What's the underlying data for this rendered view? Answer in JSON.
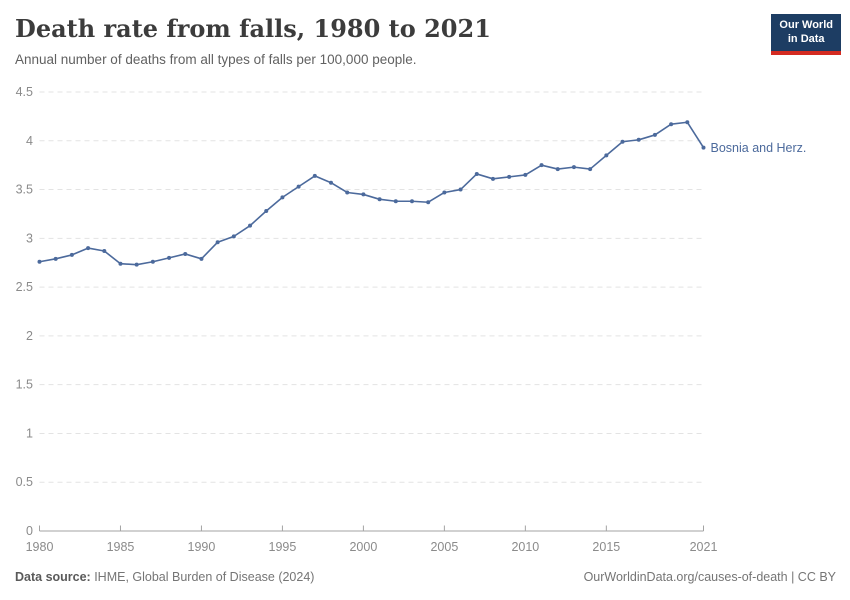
{
  "header": {
    "title": "Death rate from falls, 1980 to 2021",
    "subtitle": "Annual number of deaths from all types of falls per 100,000 people."
  },
  "logo": {
    "line1": "Our World",
    "line2": "in Data",
    "bg_color": "#1d3d63",
    "accent_color": "#d42b21"
  },
  "footer": {
    "source_label": "Data source:",
    "source_text": " IHME, Global Burden of Disease (2024)",
    "credit": "OurWorldinData.org/causes-of-death | CC BY"
  },
  "chart_data": {
    "type": "line",
    "title": "Death rate from falls, 1980 to 2021",
    "subtitle": "Annual number of deaths from all types of falls per 100,000 people.",
    "xlabel": "",
    "ylabel": "",
    "xlim": [
      1980,
      2021
    ],
    "ylim": [
      0,
      4.5
    ],
    "xticks": [
      1980,
      1985,
      1990,
      1995,
      2000,
      2005,
      2010,
      2015,
      2021
    ],
    "yticks": [
      0,
      0.5,
      1,
      1.5,
      2,
      2.5,
      3,
      3.5,
      4,
      4.5
    ],
    "grid": "horizontal-dashed",
    "legend_position": "end-of-line-label",
    "colors": {
      "grid": "#e3e3e3",
      "axis": "#a3a3a3",
      "tick_label": "#8b8b8b"
    },
    "series": [
      {
        "name": "Bosnia and Herz.",
        "color": "#4c6a9c",
        "x": [
          1980,
          1981,
          1982,
          1983,
          1984,
          1985,
          1986,
          1987,
          1988,
          1989,
          1990,
          1991,
          1992,
          1993,
          1994,
          1995,
          1996,
          1997,
          1998,
          1999,
          2000,
          2001,
          2002,
          2003,
          2004,
          2005,
          2006,
          2007,
          2008,
          2009,
          2010,
          2011,
          2012,
          2013,
          2014,
          2015,
          2016,
          2017,
          2018,
          2019,
          2020,
          2021
        ],
        "values": [
          2.76,
          2.79,
          2.83,
          2.9,
          2.87,
          2.74,
          2.73,
          2.76,
          2.8,
          2.84,
          2.79,
          2.96,
          3.02,
          3.13,
          3.28,
          3.42,
          3.53,
          3.64,
          3.57,
          3.47,
          3.45,
          3.4,
          3.38,
          3.38,
          3.37,
          3.47,
          3.5,
          3.66,
          3.61,
          3.63,
          3.65,
          3.75,
          3.71,
          3.73,
          3.71,
          3.85,
          3.99,
          4.01,
          4.06,
          4.17,
          4.19,
          3.93
        ]
      }
    ]
  }
}
